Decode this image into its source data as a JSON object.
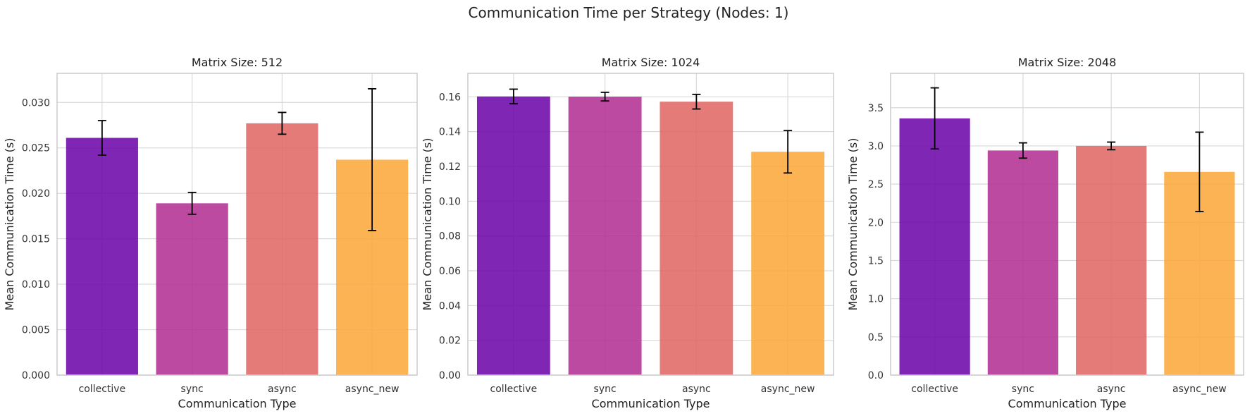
{
  "figure": {
    "suptitle": "Communication Time per Strategy (Nodes: 1)"
  },
  "chart_data": [
    {
      "type": "bar",
      "title": "Matrix Size: 512",
      "xlabel": "Communication Type",
      "ylabel": "Mean Communication Time (s)",
      "categories": [
        "collective",
        "sync",
        "async",
        "async_new"
      ],
      "values": [
        0.0261,
        0.0189,
        0.0277,
        0.0237
      ],
      "errors": [
        0.0019,
        0.0012,
        0.0012,
        0.0078
      ],
      "ylim": [
        0,
        0.0332
      ],
      "yticks": [
        0.0,
        0.005,
        0.01,
        0.015,
        0.02,
        0.025,
        0.03
      ],
      "ytick_labels": [
        "0.000",
        "0.005",
        "0.010",
        "0.015",
        "0.020",
        "0.025",
        "0.030"
      ],
      "colors": [
        "#6a00a8",
        "#b12a90",
        "#e16462",
        "#fca636"
      ],
      "grid": true
    },
    {
      "type": "bar",
      "title": "Matrix Size: 1024",
      "xlabel": "Communication Type",
      "ylabel": "Mean Communication Time (s)",
      "categories": [
        "collective",
        "sync",
        "async",
        "async_new"
      ],
      "values": [
        0.1602,
        0.1601,
        0.1572,
        0.1284
      ],
      "errors": [
        0.0042,
        0.0025,
        0.0042,
        0.0122
      ],
      "ylim": [
        0,
        0.1735
      ],
      "yticks": [
        0.0,
        0.02,
        0.04,
        0.06,
        0.08,
        0.1,
        0.12,
        0.14,
        0.16
      ],
      "ytick_labels": [
        "0.00",
        "0.02",
        "0.04",
        "0.06",
        "0.08",
        "0.10",
        "0.12",
        "0.14",
        "0.16"
      ],
      "colors": [
        "#6a00a8",
        "#b12a90",
        "#e16462",
        "#fca636"
      ],
      "grid": true
    },
    {
      "type": "bar",
      "title": "Matrix Size: 2048",
      "xlabel": "Communication Type",
      "ylabel": "Mean Communication Time (s)",
      "categories": [
        "collective",
        "sync",
        "async",
        "async_new"
      ],
      "values": [
        3.36,
        2.94,
        3.0,
        2.66
      ],
      "errors": [
        0.4,
        0.1,
        0.05,
        0.52
      ],
      "ylim": [
        0,
        3.95
      ],
      "yticks": [
        0.0,
        0.5,
        1.0,
        1.5,
        2.0,
        2.5,
        3.0,
        3.5
      ],
      "ytick_labels": [
        "0.0",
        "0.5",
        "1.0",
        "1.5",
        "2.0",
        "2.5",
        "3.0",
        "3.5"
      ],
      "colors": [
        "#6a00a8",
        "#b12a90",
        "#e16462",
        "#fca636"
      ],
      "grid": true
    }
  ]
}
